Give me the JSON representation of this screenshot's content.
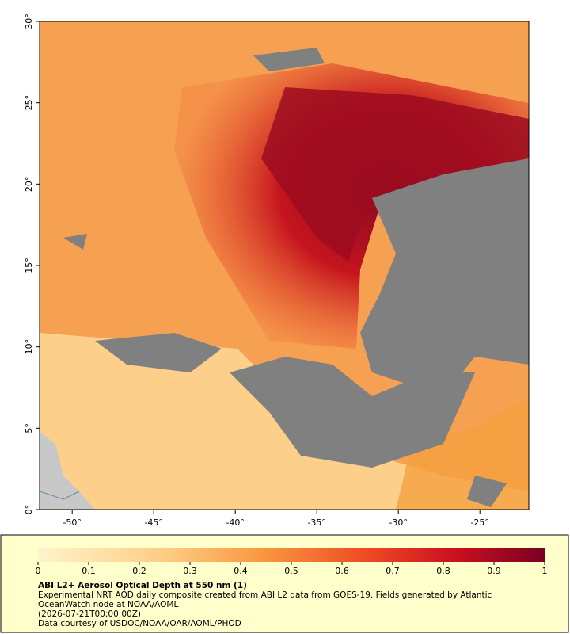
{
  "map": {
    "xlim": [
      -52,
      -22
    ],
    "ylim": [
      0,
      30
    ],
    "xticks": [
      {
        "value": -50,
        "label": "-50°"
      },
      {
        "value": -45,
        "label": "-45°"
      },
      {
        "value": -40,
        "label": "-40°"
      },
      {
        "value": -35,
        "label": "-35°"
      },
      {
        "value": -30,
        "label": "-30°"
      },
      {
        "value": -25,
        "label": "-25°"
      }
    ],
    "yticks": [
      {
        "value": 0,
        "label": "0°"
      },
      {
        "value": 5,
        "label": "5°"
      },
      {
        "value": 10,
        "label": "10°"
      },
      {
        "value": 15,
        "label": "15°"
      },
      {
        "value": 20,
        "label": "20°"
      },
      {
        "value": 25,
        "label": "25°"
      },
      {
        "value": 30,
        "label": "30°"
      }
    ]
  },
  "colorbar": {
    "lim": [
      0,
      1
    ],
    "ticks": [
      0,
      0.1,
      0.2,
      0.3,
      0.4,
      0.5,
      0.6,
      0.7,
      0.8,
      0.9,
      1
    ]
  },
  "caption": {
    "title": "ABI L2+ Aerosol Optical Depth at 550 nm (1)",
    "description": "Experimental NRT AOD daily composite created from ABI L2 data from GOES-19. Fields generated by Atlantic OceanWatch node at NOAA/AOML",
    "timestamp": "(2026-07-21T00:00:00Z)",
    "credit": "Data courtesy of USDOC/NOAA/OAR/AOML/PHOD"
  }
}
